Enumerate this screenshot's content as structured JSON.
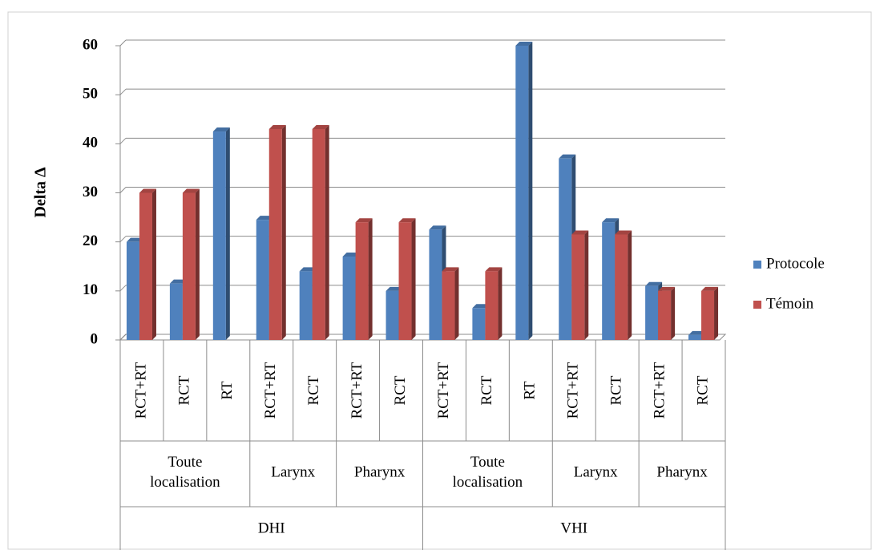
{
  "chart_data": {
    "type": "bar3d",
    "y_label": "Delta Δ",
    "categories": [
      "RCT+RT",
      "RCT",
      "RT",
      "RCT+RT",
      "RCT",
      "RCT+RT",
      "RCT",
      "RCT+RT",
      "RCT",
      "RT",
      "RCT+RT",
      "RCT",
      "RCT+RT",
      "RCT"
    ],
    "categories_level2": [
      "Toute localisation",
      "Toute localisation",
      "Toute localisation",
      "Larynx",
      "Larynx",
      "Pharynx",
      "Pharynx",
      "Toute localisation",
      "Toute localisation",
      "Toute localisation",
      "Larynx",
      "Larynx",
      "Pharynx",
      "Pharynx"
    ],
    "categories_level1": [
      "DHI",
      "DHI",
      "DHI",
      "DHI",
      "DHI",
      "DHI",
      "DHI",
      "VHI",
      "VHI",
      "VHI",
      "VHI",
      "VHI",
      "VHI",
      "VHI"
    ],
    "series": [
      {
        "name": "Protocole",
        "color": "#4f81bd",
        "values": [
          20,
          11.5,
          42.5,
          24.5,
          14,
          17,
          10,
          22.5,
          6.5,
          60,
          37,
          24,
          11,
          1
        ]
      },
      {
        "name": "Témoin",
        "color": "#c0504d",
        "values": [
          30,
          30,
          null,
          43,
          43,
          24,
          24,
          14,
          14,
          null,
          21.5,
          21.5,
          10,
          10
        ]
      }
    ],
    "ylim": [
      0,
      60
    ],
    "yticks": [
      0,
      10,
      20,
      30,
      40,
      50,
      60
    ],
    "grid": true,
    "legend": "right"
  }
}
